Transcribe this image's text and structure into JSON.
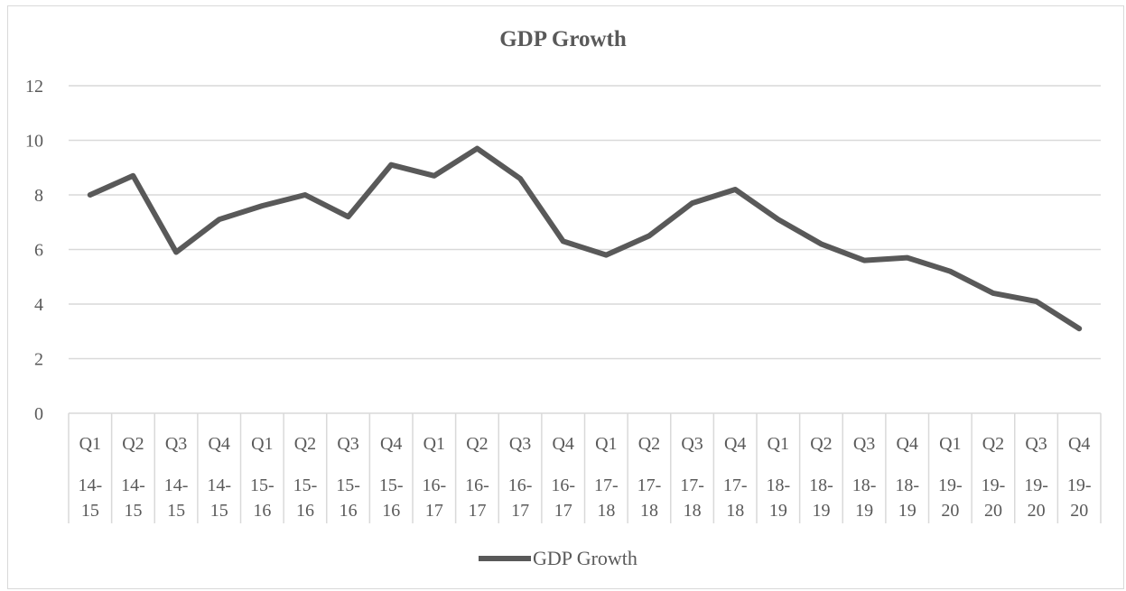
{
  "chart_data": {
    "type": "line",
    "title": "GDP Growth",
    "xlabel": "",
    "ylabel": "",
    "ylim": [
      0,
      12
    ],
    "yticks": [
      "0",
      "2",
      "4",
      "6",
      "8",
      "10",
      "12"
    ],
    "grid": true,
    "legend_position": "bottom",
    "categories": [
      {
        "quarter": "Q1",
        "year": [
          "14-",
          "15"
        ]
      },
      {
        "quarter": "Q2",
        "year": [
          "14-",
          "15"
        ]
      },
      {
        "quarter": "Q3",
        "year": [
          "14-",
          "15"
        ]
      },
      {
        "quarter": "Q4",
        "year": [
          "14-",
          "15"
        ]
      },
      {
        "quarter": "Q1",
        "year": [
          "15-",
          "16"
        ]
      },
      {
        "quarter": "Q2",
        "year": [
          "15-",
          "16"
        ]
      },
      {
        "quarter": "Q3",
        "year": [
          "15-",
          "16"
        ]
      },
      {
        "quarter": "Q4",
        "year": [
          "15-",
          "16"
        ]
      },
      {
        "quarter": "Q1",
        "year": [
          "16-",
          "17"
        ]
      },
      {
        "quarter": "Q2",
        "year": [
          "16-",
          "17"
        ]
      },
      {
        "quarter": "Q3",
        "year": [
          "16-",
          "17"
        ]
      },
      {
        "quarter": "Q4",
        "year": [
          "16-",
          "17"
        ]
      },
      {
        "quarter": "Q1",
        "year": [
          "17-",
          "18"
        ]
      },
      {
        "quarter": "Q2",
        "year": [
          "17-",
          "18"
        ]
      },
      {
        "quarter": "Q3",
        "year": [
          "17-",
          "18"
        ]
      },
      {
        "quarter": "Q4",
        "year": [
          "17-",
          "18"
        ]
      },
      {
        "quarter": "Q1",
        "year": [
          "18-",
          "19"
        ]
      },
      {
        "quarter": "Q2",
        "year": [
          "18-",
          "19"
        ]
      },
      {
        "quarter": "Q3",
        "year": [
          "18-",
          "19"
        ]
      },
      {
        "quarter": "Q4",
        "year": [
          "18-",
          "19"
        ]
      },
      {
        "quarter": "Q1",
        "year": [
          "19-",
          "20"
        ]
      },
      {
        "quarter": "Q2",
        "year": [
          "19-",
          "20"
        ]
      },
      {
        "quarter": "Q3",
        "year": [
          "19-",
          "20"
        ]
      },
      {
        "quarter": "Q4",
        "year": [
          "19-",
          "20"
        ]
      }
    ],
    "series": [
      {
        "name": "GDP Growth",
        "color": "#595959",
        "values": [
          8.0,
          8.7,
          5.9,
          7.1,
          7.6,
          8.0,
          7.2,
          9.1,
          8.7,
          9.7,
          8.6,
          6.3,
          5.8,
          6.5,
          7.7,
          8.2,
          7.1,
          6.2,
          5.6,
          5.7,
          5.2,
          4.4,
          4.1,
          3.1
        ]
      }
    ]
  }
}
